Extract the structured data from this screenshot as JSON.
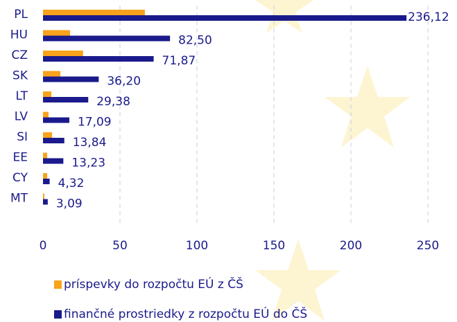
{
  "chart_data": {
    "type": "bar",
    "orientation": "horizontal",
    "categories": [
      "PL",
      "HU",
      "CZ",
      "SK",
      "LT",
      "LV",
      "SI",
      "EE",
      "CY",
      "MT"
    ],
    "series": [
      {
        "name": "príspevky do rozpočtu EÚ z ČŠ",
        "color": "#f9a21b",
        "values": [
          66.2,
          17.6,
          26.0,
          11.3,
          5.4,
          3.6,
          5.9,
          2.7,
          2.7,
          0.9
        ]
      },
      {
        "name": "finančné prostriedky z rozpočtu EÚ do ČŠ",
        "color": "#1a1a8c",
        "values": [
          236.12,
          82.5,
          71.87,
          36.2,
          29.38,
          17.09,
          13.84,
          13.23,
          4.32,
          3.09
        ],
        "value_labels": [
          "236,12",
          "82,50",
          "71,87",
          "36,20",
          "29,38",
          "17,09",
          "13,84",
          "13,23",
          "4,32",
          "3,09"
        ]
      }
    ],
    "xlim": [
      0,
      250
    ],
    "xticks": [
      0,
      50,
      100,
      150,
      200,
      250
    ],
    "grid": true,
    "legend": "bottom"
  }
}
